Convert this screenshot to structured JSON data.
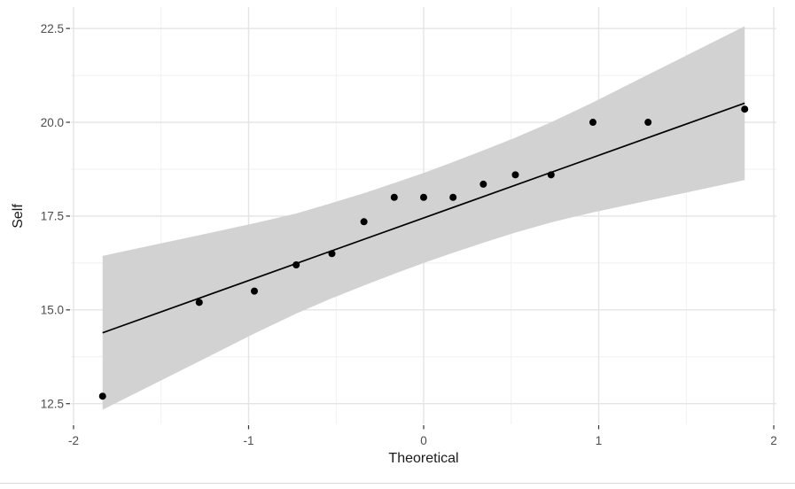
{
  "chart_data": {
    "type": "scatter",
    "subtype": "qq-plot-with-confidence-band",
    "title": "",
    "xlabel": "Theoretical",
    "ylabel": "Self",
    "xlim": [
      -2.015,
      2.015
    ],
    "ylim": [
      11.95,
      23.07
    ],
    "grid": true,
    "legend": false,
    "x_ticks": {
      "values": [
        -2,
        -1,
        0,
        1,
        2
      ],
      "labels": [
        "-2",
        "-1",
        "0",
        "1",
        "2"
      ],
      "minor": [
        -1.5,
        -0.5,
        0.5,
        1.5
      ]
    },
    "y_ticks": {
      "values": [
        12.5,
        15.0,
        17.5,
        20.0,
        22.5
      ],
      "labels": [
        "12.5",
        "15.0",
        "17.5",
        "20.0",
        "22.5"
      ],
      "minor": [
        13.75,
        16.25,
        18.75,
        21.25
      ]
    },
    "points": {
      "x": [
        -1.834,
        -1.282,
        -0.967,
        -0.728,
        -0.524,
        -0.341,
        -0.168,
        0,
        0.168,
        0.341,
        0.524,
        0.728,
        0.967,
        1.282,
        1.834
      ],
      "y": [
        12.7,
        15.2,
        15.5,
        16.2,
        16.5,
        17.35,
        18.0,
        18.0,
        18.0,
        18.35,
        18.6,
        18.6,
        20.0,
        20.0,
        20.35
      ]
    },
    "fit_line": {
      "x": [
        -1.834,
        1.834
      ],
      "y": [
        14.39,
        20.51
      ]
    },
    "confidence_band": {
      "x": [
        -1.834,
        -1.282,
        -0.967,
        -0.728,
        -0.524,
        -0.341,
        -0.168,
        0,
        0.168,
        0.341,
        0.524,
        0.728,
        0.967,
        1.282,
        1.834
      ],
      "upper": [
        16.44,
        16.99,
        17.31,
        17.57,
        17.85,
        18.11,
        18.38,
        18.65,
        18.94,
        19.25,
        19.59,
        20.0,
        20.53,
        21.27,
        22.56
      ],
      "lower": [
        12.34,
        13.63,
        14.37,
        14.9,
        15.31,
        15.65,
        15.96,
        16.25,
        16.52,
        16.79,
        17.06,
        17.33,
        17.6,
        17.91,
        18.46
      ]
    },
    "colors": {
      "point": "#000000",
      "line": "#000000",
      "band": "#d2d2d2",
      "grid_major": "#e4e4e4",
      "grid_minor": "#f1f1f1",
      "tick_mark": "#333333",
      "tick_label": "#4d4d4d",
      "axis_title": "#1a1a1a",
      "panel_background": "#ffffff"
    }
  }
}
